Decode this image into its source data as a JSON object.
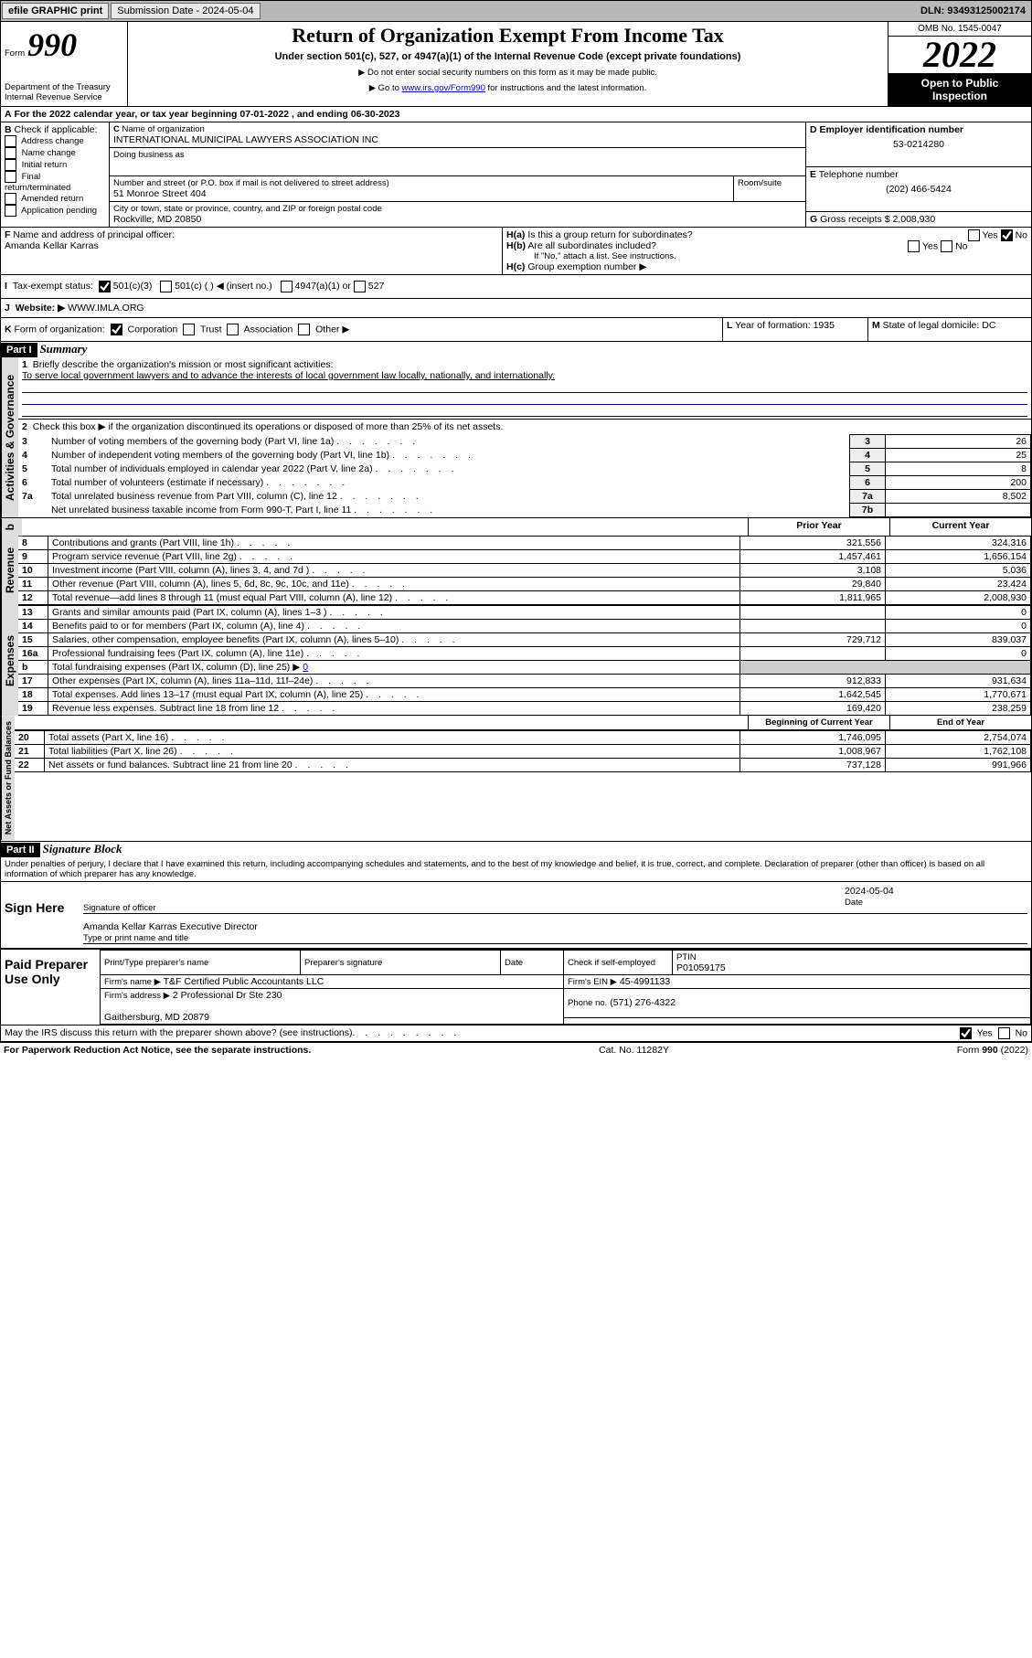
{
  "topbar": {
    "efile": "efile GRAPHIC print",
    "subdate_label": "Submission Date - 2024-05-04",
    "dln": "DLN: 93493125002174"
  },
  "header": {
    "form": "Form",
    "f990": "990",
    "title": "Return of Organization Exempt From Income Tax",
    "subtitle": "Under section 501(c), 527, or 4947(a)(1) of the Internal Revenue Code (except private foundations)",
    "warn1": "▶ Do not enter social security numbers on this form as it may be made public.",
    "warn2_pre": "▶ Go to ",
    "warn2_link": "www.irs.gov/Form990",
    "warn2_post": " for instructions and the latest information.",
    "dept": "Department of the Treasury",
    "irs": "Internal Revenue Service",
    "omb": "OMB No. 1545-0047",
    "year": "2022",
    "open": "Open to Public",
    "insp": "Inspection"
  },
  "A": {
    "text": "For the 2022 calendar year, or tax year beginning 07-01-2022   , and ending 06-30-2023"
  },
  "B": {
    "title": "Check if applicable:",
    "items": [
      "Address change",
      "Name change",
      "Initial return",
      "Final return/terminated",
      "Amended return",
      "Application pending"
    ]
  },
  "C": {
    "label": "Name of organization",
    "name": "INTERNATIONAL MUNICIPAL LAWYERS ASSOCIATION INC",
    "dba_label": "Doing business as",
    "dba": "",
    "street_label": "Number and street (or P.O. box if mail is not delivered to street address)",
    "room_label": "Room/suite",
    "street": "51 Monroe Street 404",
    "city_label": "City or town, state or province, country, and ZIP or foreign postal code",
    "city": "Rockville, MD   20850"
  },
  "D": {
    "label": "Employer identification number",
    "val": "53-0214280"
  },
  "E": {
    "label": "Telephone number",
    "val": "(202) 466-5424"
  },
  "G": {
    "label": "Gross receipts $",
    "val": "2,008,930"
  },
  "F": {
    "label": "Name and address of principal officer:",
    "val": "Amanda Kellar Karras"
  },
  "H": {
    "a": "Is this a group return for subordinates?",
    "b": "Are all subordinates included?",
    "ifno": "If \"No,\" attach a list. See instructions.",
    "c": "Group exemption number ▶",
    "yes": "Yes",
    "no": "No"
  },
  "I": {
    "label": "Tax-exempt status:",
    "c3": "501(c)(3)",
    "c": "501(c) (  ) ◀ (insert no.)",
    "a1": "4947(a)(1) or",
    "s527": "527"
  },
  "J": {
    "label": "Website: ▶",
    "val": "WWW.IMLA.ORG"
  },
  "K": {
    "label": "Form of organization:",
    "corp": "Corporation",
    "trust": "Trust",
    "assoc": "Association",
    "other": "Other ▶"
  },
  "L": {
    "label": "Year of formation:",
    "val": "1935"
  },
  "M": {
    "label": "State of legal domicile:",
    "val": "DC"
  },
  "P1": {
    "title": "Summary",
    "side1": "Activities & Governance",
    "side2": "Revenue",
    "side3": "Expenses",
    "side4": "Net Assets or Fund Balances",
    "l1": "Briefly describe the organization's mission or most significant activities:",
    "l1v": "To serve local government lawyers and to advance the interests of local government law locally, nationally, and internationally.",
    "l2": "Check this box ▶        if the organization discontinued its operations or disposed of more than 25% of its net assets.",
    "rows": [
      {
        "n": "3",
        "t": "Number of voting members of the governing body (Part VI, line 1a)",
        "box": "3",
        "v": "26"
      },
      {
        "n": "4",
        "t": "Number of independent voting members of the governing body (Part VI, line 1b)",
        "box": "4",
        "v": "25"
      },
      {
        "n": "5",
        "t": "Total number of individuals employed in calendar year 2022 (Part V, line 2a)",
        "box": "5",
        "v": "8"
      },
      {
        "n": "6",
        "t": "Total number of volunteers (estimate if necessary)",
        "box": "6",
        "v": "200"
      },
      {
        "n": "7a",
        "t": "Total unrelated business revenue from Part VIII, column (C), line 12",
        "box": "7a",
        "v": "8,502"
      },
      {
        "n": "",
        "t": "Net unrelated business taxable income from Form 990-T, Part I, line 11",
        "box": "7b",
        "v": ""
      }
    ],
    "ph": "Prior Year",
    "cy": "Current Year",
    "revrows": [
      {
        "n": "8",
        "t": "Contributions and grants (Part VIII, line 1h)",
        "p": "321,556",
        "c": "324,316"
      },
      {
        "n": "9",
        "t": "Program service revenue (Part VIII, line 2g)",
        "p": "1,457,461",
        "c": "1,656,154"
      },
      {
        "n": "10",
        "t": "Investment income (Part VIII, column (A), lines 3, 4, and 7d )",
        "p": "3,108",
        "c": "5,036"
      },
      {
        "n": "11",
        "t": "Other revenue (Part VIII, column (A), lines 5, 6d, 8c, 9c, 10c, and 11e)",
        "p": "29,840",
        "c": "23,424"
      },
      {
        "n": "12",
        "t": "Total revenue—add lines 8 through 11 (must equal Part VIII, column (A), line 12)",
        "p": "1,811,965",
        "c": "2,008,930"
      }
    ],
    "exprows": [
      {
        "n": "13",
        "t": "Grants and similar amounts paid (Part IX, column (A), lines 1–3 )",
        "p": "",
        "c": "0"
      },
      {
        "n": "14",
        "t": "Benefits paid to or for members (Part IX, column (A), line 4)",
        "p": "",
        "c": "0"
      },
      {
        "n": "15",
        "t": "Salaries, other compensation, employee benefits (Part IX, column (A), lines 5–10)",
        "p": "729,712",
        "c": "839,037"
      },
      {
        "n": "16a",
        "t": "Professional fundraising fees (Part IX, column (A), line 11e)",
        "p": "",
        "c": "0"
      },
      {
        "n": "b",
        "t": "Total fundraising expenses (Part IX, column (D), line 25) ▶",
        "p": "",
        "c": "",
        "link": "0"
      },
      {
        "n": "17",
        "t": "Other expenses (Part IX, column (A), lines 11a–11d, 11f–24e)",
        "p": "912,833",
        "c": "931,634"
      },
      {
        "n": "18",
        "t": "Total expenses. Add lines 13–17 (must equal Part IX, column (A), line 25)",
        "p": "1,642,545",
        "c": "1,770,671"
      },
      {
        "n": "19",
        "t": "Revenue less expenses. Subtract line 18 from line 12",
        "p": "169,420",
        "c": "238,259"
      }
    ],
    "by": "Beginning of Current Year",
    "ey": "End of Year",
    "netrows": [
      {
        "n": "20",
        "t": "Total assets (Part X, line 16)",
        "p": "1,746,095",
        "c": "2,754,074"
      },
      {
        "n": "21",
        "t": "Total liabilities (Part X, line 26)",
        "p": "1,008,967",
        "c": "1,762,108"
      },
      {
        "n": "22",
        "t": "Net assets or fund balances. Subtract line 21 from line 20",
        "p": "737,128",
        "c": "991,966"
      }
    ]
  },
  "P2": {
    "title": "Signature Block",
    "decl": "Under penalties of perjury, I declare that I have examined this return, including accompanying schedules and statements, and to the best of my knowledge and belief, it is true, correct, and complete. Declaration of preparer (other than officer) is based on all information of which preparer has any knowledge.",
    "sign": "Sign Here",
    "sigoff": "Signature of officer",
    "date": "Date",
    "sigdate": "2024-05-04",
    "name": "Amanda Kellar Karras  Executive Director",
    "type": "Type or print name and title",
    "paid": "Paid Preparer Use Only",
    "pt": "Print/Type preparer's name",
    "ps": "Preparer's signature",
    "chk": "Check        if self-employed",
    "ptin": "PTIN",
    "ptinv": "P01059175",
    "firm": "Firm's name   ▶",
    "firmv": "T&F Certified Public Accountants LLC",
    "ein": "Firm's EIN ▶",
    "einv": "45-4991133",
    "addr": "Firm's address ▶",
    "addrv": "2 Professional Dr Ste 230",
    "addr2": "Gaithersburg, MD   20879",
    "phone": "Phone no.",
    "phonev": "(571) 276-4322",
    "may": "May the IRS discuss this return with the preparer shown above? (see instructions)",
    "yes": "Yes",
    "no": "No",
    "pra": "For Paperwork Reduction Act Notice, see the separate instructions.",
    "cat": "Cat. No. 11282Y",
    "form": "Form 990 (2022)"
  }
}
